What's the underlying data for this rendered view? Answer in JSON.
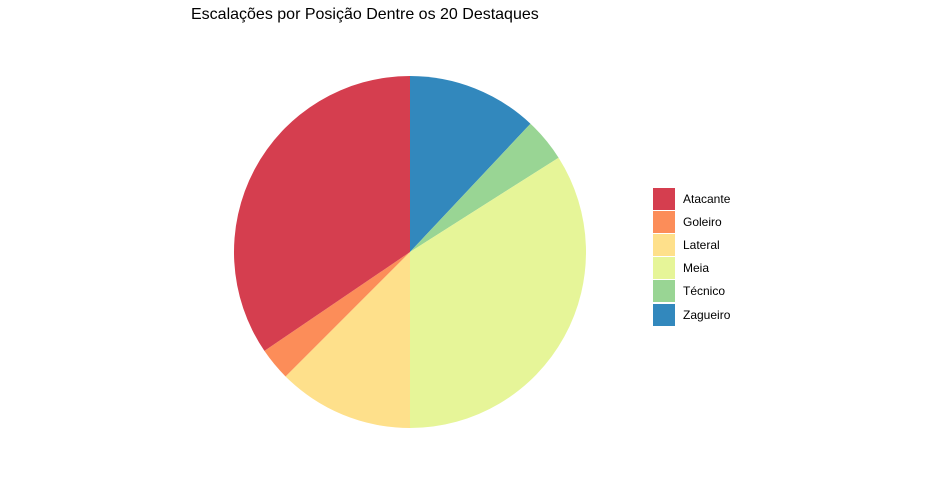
{
  "chart_data": {
    "type": "pie",
    "title": "Escalações por Posição Dentre os 20 Destaques",
    "legend_position": "right",
    "slices": [
      {
        "name": "Atacante",
        "value": 34.5,
        "color": "#D53E4F"
      },
      {
        "name": "Goleiro",
        "value": 3.0,
        "color": "#FC8D59"
      },
      {
        "name": "Lateral",
        "value": 12.5,
        "color": "#FEE08B"
      },
      {
        "name": "Meia",
        "value": 34.0,
        "color": "#E6F598"
      },
      {
        "name": "Técnico",
        "value": 4.0,
        "color": "#99D594"
      },
      {
        "name": "Zagueiro",
        "value": 12.0,
        "color": "#3288BD"
      }
    ]
  }
}
